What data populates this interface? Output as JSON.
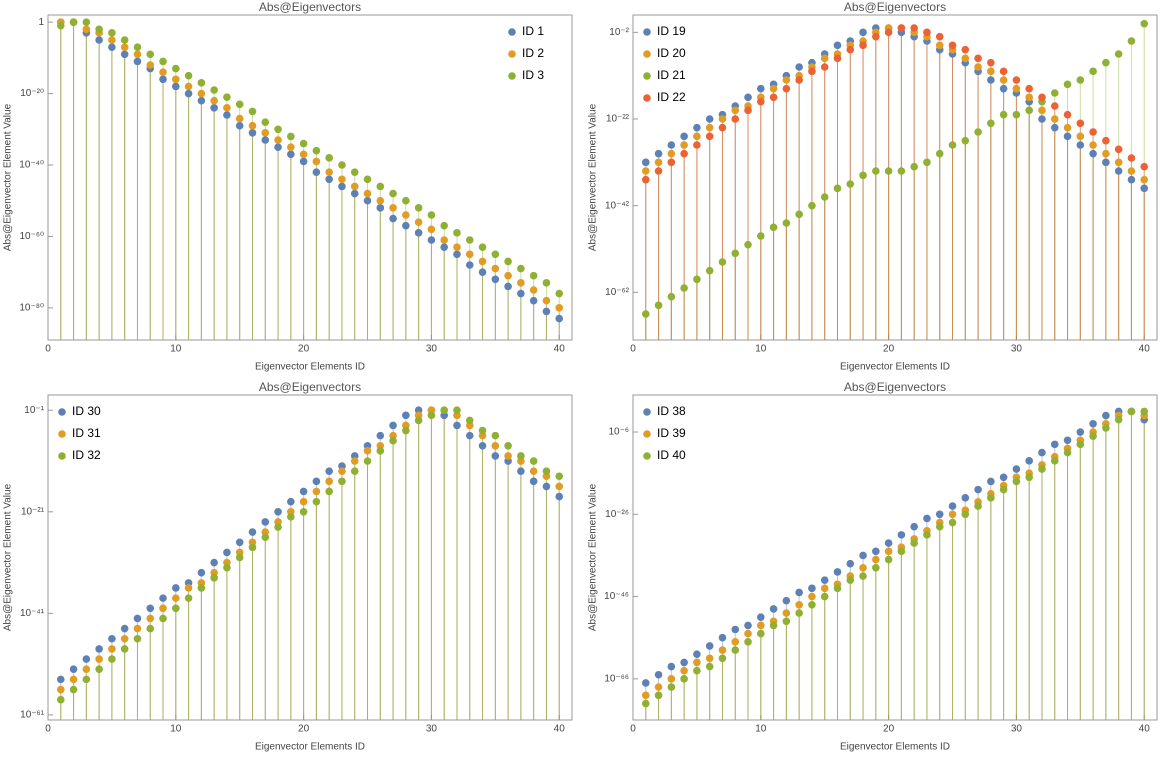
{
  "chart_data": [
    {
      "type": "scatter",
      "title": "Abs@Eigenvectors",
      "x_label": "Eigenvector Elements ID",
      "y_label": "Abs@Eigenvector Element Value",
      "y_scale": "log",
      "legend": "upper right",
      "x": [
        1,
        2,
        3,
        4,
        5,
        6,
        7,
        8,
        9,
        10,
        11,
        12,
        13,
        14,
        15,
        16,
        17,
        18,
        19,
        20,
        21,
        22,
        23,
        24,
        25,
        26,
        27,
        28,
        29,
        30,
        31,
        32,
        33,
        34,
        35,
        36,
        37,
        38,
        39,
        40
      ],
      "xlim": [
        0,
        41
      ],
      "xticks": [
        0,
        10,
        20,
        30,
        40
      ],
      "ylim": [
        1e-89,
        100.0
      ],
      "yticks": [
        1,
        {
          "value": 1e-20,
          "label": "10⁻²⁰"
        },
        {
          "value": 1e-40,
          "label": "10⁻⁴⁰"
        },
        {
          "value": 1e-60,
          "label": "10⁻⁶⁰"
        },
        {
          "value": 1e-80,
          "label": "10⁻⁸⁰"
        }
      ],
      "series": [
        {
          "name": "ID 1",
          "color": "#5e81b5",
          "values": [
            1,
            1,
            0.001,
            1e-05,
            1e-07,
            1e-09,
            1e-11,
            1e-13,
            1e-16,
            1e-18,
            1e-20,
            1e-22,
            1e-24,
            1e-26,
            1e-29,
            1e-31,
            1e-33,
            1e-35,
            1e-37,
            1e-39,
            1e-42,
            1e-44,
            1e-46,
            1e-48,
            1e-50,
            1e-52,
            1e-55,
            1e-57,
            1e-59,
            1e-61,
            1e-63,
            1e-65,
            1e-68,
            1e-70,
            1e-72,
            1e-74,
            1e-76,
            1e-78,
            1e-81,
            1e-83
          ]
        },
        {
          "name": "ID 2",
          "color": "#e19c24",
          "values": [
            1,
            1,
            0.01,
            0.001,
            1e-05,
            1e-07,
            1e-09,
            1e-12,
            1e-14,
            1e-16,
            1e-18,
            1e-20,
            1e-22,
            1e-24,
            1e-27,
            1e-29,
            1e-31,
            1e-33,
            1e-35,
            1e-37,
            1e-39,
            1e-42,
            1e-44,
            1e-46,
            1e-48,
            1e-50,
            1e-52,
            1e-54,
            1e-56,
            1e-58,
            1e-61,
            1e-63,
            1e-65,
            1e-67,
            1e-69,
            1e-71,
            1e-73,
            1e-75,
            1e-78,
            1e-80
          ]
        },
        {
          "name": "ID 3",
          "color": "#8fb032",
          "values": [
            0.1,
            1,
            1,
            0.01,
            0.001,
            1e-05,
            1e-07,
            1e-09,
            1e-11,
            1e-13,
            1e-15,
            1e-17,
            1e-19,
            1e-21,
            1e-23,
            1e-25,
            1e-28,
            1e-30,
            1e-32,
            1e-34,
            1e-36,
            1e-38,
            1e-40,
            1e-42,
            1e-44,
            1e-46,
            1e-48,
            1e-50,
            1e-52,
            1e-54,
            1e-57,
            1e-59,
            1e-61,
            1e-63,
            1e-65,
            1e-67,
            1e-69,
            1e-71,
            1e-73,
            1e-76
          ]
        }
      ]
    },
    {
      "type": "scatter",
      "title": "Abs@Eigenvectors",
      "x_label": "Eigenvector Elements ID",
      "y_label": "Abs@Eigenvector Element Value",
      "y_scale": "log",
      "legend": "upper left",
      "x": [
        1,
        2,
        3,
        4,
        5,
        6,
        7,
        8,
        9,
        10,
        11,
        12,
        13,
        14,
        15,
        16,
        17,
        18,
        19,
        20,
        21,
        22,
        23,
        24,
        25,
        26,
        27,
        28,
        29,
        30,
        31,
        32,
        33,
        34,
        35,
        36,
        37,
        38,
        39,
        40
      ],
      "xlim": [
        0,
        41
      ],
      "xticks": [
        0,
        10,
        20,
        30,
        40
      ],
      "ylim": [
        1e-73,
        100.0
      ],
      "yticks": [
        {
          "value": 0.01,
          "label": "10⁻²"
        },
        {
          "value": 1e-22,
          "label": "10⁻²²"
        },
        {
          "value": 1e-42,
          "label": "10⁻⁴²"
        },
        {
          "value": 1e-62,
          "label": "10⁻⁶²"
        }
      ],
      "series": [
        {
          "name": "ID 19",
          "color": "#5e81b5",
          "values": [
            1e-32,
            1e-30,
            1e-28,
            1e-26,
            1e-24,
            1e-22,
            1e-21,
            1e-19,
            1e-17,
            1e-15,
            1e-14,
            1e-12,
            1e-10,
            1e-09,
            1e-07,
            1e-05,
            0.0001,
            0.01,
            0.1,
            0.1,
            0.01,
            0.001,
            0.0001,
            1e-06,
            1e-07,
            1e-09,
            1e-11,
            1e-13,
            1e-15,
            1e-16,
            1e-18,
            1e-22,
            1e-24,
            1e-26,
            1e-28,
            1e-30,
            1e-32,
            1e-34,
            1e-36,
            1e-38
          ]
        },
        {
          "name": "ID 20",
          "color": "#e19c24",
          "values": [
            1e-34,
            1e-32,
            1e-30,
            1e-28,
            1e-26,
            1e-24,
            1e-22,
            1e-20,
            1e-19,
            1e-17,
            1e-15,
            1e-13,
            1e-12,
            1e-10,
            1e-08,
            1e-07,
            1e-05,
            0.0001,
            0.01,
            0.1,
            0.1,
            0.01,
            0.001,
            1e-05,
            1e-06,
            1e-08,
            1e-10,
            1e-11,
            1e-13,
            1e-15,
            1e-17,
            1e-20,
            1e-22,
            1e-24,
            1e-26,
            1e-28,
            1e-30,
            1e-32,
            1e-34,
            1e-36
          ]
        },
        {
          "name": "ID 21",
          "color": "#8fb032",
          "values": [
            1e-67,
            1e-65,
            1e-63,
            1e-61,
            1e-59,
            1e-57,
            1e-55,
            1e-53,
            1e-51,
            1e-49,
            1e-47,
            1e-46,
            1e-44,
            1e-42,
            1e-40,
            1e-38,
            1e-37,
            1e-35,
            1e-34,
            1e-34,
            1e-34,
            1e-33,
            1e-32,
            1e-30,
            1e-28,
            1e-27,
            1e-25,
            1e-23,
            1e-21,
            1e-21,
            1e-20,
            1e-18,
            1e-16,
            1e-14,
            1e-13,
            1e-11,
            1e-09,
            1e-07,
            0.0001,
            1
          ]
        },
        {
          "name": "ID 22",
          "color": "#eb6235",
          "values": [
            1e-36,
            1e-34,
            1e-32,
            1e-30,
            1e-28,
            1e-26,
            1e-24,
            1e-22,
            1e-20,
            1e-18,
            1e-17,
            1e-15,
            1e-13,
            1e-11,
            1e-10,
            1e-08,
            1e-06,
            1e-05,
            0.001,
            0.01,
            0.1,
            0.1,
            0.01,
            0.001,
            1e-05,
            1e-06,
            1e-08,
            1e-09,
            1e-11,
            1e-13,
            1e-15,
            1e-17,
            1e-19,
            1e-21,
            1e-23,
            1e-25,
            1e-27,
            1e-29,
            1e-31,
            1e-33
          ]
        }
      ]
    },
    {
      "type": "scatter",
      "title": "Abs@Eigenvectors",
      "x_label": "Eigenvector Elements ID",
      "y_label": "Abs@Eigenvector Element Value",
      "y_scale": "log",
      "legend": "upper left",
      "x": [
        1,
        2,
        3,
        4,
        5,
        6,
        7,
        8,
        9,
        10,
        11,
        12,
        13,
        14,
        15,
        16,
        17,
        18,
        19,
        20,
        21,
        22,
        23,
        24,
        25,
        26,
        27,
        28,
        29,
        30,
        31,
        32,
        33,
        34,
        35,
        36,
        37,
        38,
        39,
        40
      ],
      "xlim": [
        0,
        41
      ],
      "xticks": [
        0,
        10,
        20,
        30,
        40
      ],
      "ylim": [
        1e-62,
        100.0
      ],
      "yticks": [
        {
          "value": 0.1,
          "label": "10⁻¹"
        },
        {
          "value": 1e-21,
          "label": "10⁻²¹"
        },
        {
          "value": 1e-41,
          "label": "10⁻⁴¹"
        },
        {
          "value": 1e-61,
          "label": "10⁻⁶¹"
        }
      ],
      "series": [
        {
          "name": "ID 30",
          "color": "#5e81b5",
          "values": [
            1e-54,
            1e-52,
            1e-50,
            1e-48,
            1e-46,
            1e-44,
            1e-42,
            1e-40,
            1e-38,
            1e-36,
            1e-35,
            1e-33,
            1e-31,
            1e-29,
            1e-27,
            1e-25,
            1e-23,
            1e-21,
            1e-19,
            1e-17,
            1e-15,
            1e-13,
            1e-12,
            1e-10,
            1e-08,
            1e-06,
            0.0001,
            0.01,
            0.1,
            0.1,
            0.01,
            0.0001,
            1e-06,
            1e-08,
            1e-10,
            1e-11,
            1e-13,
            1e-15,
            1e-16,
            1e-18
          ]
        },
        {
          "name": "ID 31",
          "color": "#e19c24",
          "values": [
            1e-56,
            1e-54,
            1e-52,
            1e-50,
            1e-48,
            1e-46,
            1e-44,
            1e-42,
            1e-40,
            1e-38,
            1e-36,
            1e-35,
            1e-33,
            1e-31,
            1e-29,
            1e-27,
            1e-25,
            1e-23,
            1e-21,
            1e-19,
            1e-17,
            1e-15,
            1e-13,
            1e-11,
            1e-09,
            1e-08,
            1e-06,
            0.0001,
            0.01,
            0.1,
            0.1,
            0.01,
            0.0001,
            1e-06,
            1e-08,
            1e-10,
            1e-11,
            1e-13,
            1e-14,
            1e-16
          ]
        },
        {
          "name": "ID 32",
          "color": "#8fb032",
          "values": [
            1e-58,
            1e-56,
            1e-54,
            1e-52,
            1e-50,
            1e-48,
            1e-46,
            1e-44,
            1e-42,
            1e-40,
            1e-38,
            1e-36,
            1e-34,
            1e-32,
            1e-30,
            1e-28,
            1e-26,
            1e-24,
            1e-22,
            1e-21,
            1e-19,
            1e-17,
            1e-15,
            1e-13,
            1e-11,
            1e-09,
            1e-07,
            1e-05,
            0.001,
            0.01,
            0.1,
            0.1,
            0.001,
            1e-05,
            1e-06,
            1e-08,
            1e-10,
            1e-11,
            1e-13,
            1e-14
          ]
        }
      ]
    },
    {
      "type": "scatter",
      "title": "Abs@Eigenvectors",
      "x_label": "Eigenvector Elements ID",
      "y_label": "Abs@Eigenvector Element Value",
      "y_scale": "log",
      "legend": "upper left",
      "x": [
        1,
        2,
        3,
        4,
        5,
        6,
        7,
        8,
        9,
        10,
        11,
        12,
        13,
        14,
        15,
        16,
        17,
        18,
        19,
        20,
        21,
        22,
        23,
        24,
        25,
        26,
        27,
        28,
        29,
        30,
        31,
        32,
        33,
        34,
        35,
        36,
        37,
        38,
        39,
        40
      ],
      "xlim": [
        0,
        41
      ],
      "xticks": [
        0,
        10,
        20,
        30,
        40
      ],
      "ylim": [
        1e-76,
        1000.0
      ],
      "yticks": [
        {
          "value": 1e-06,
          "label": "10⁻⁶"
        },
        {
          "value": 1e-26,
          "label": "10⁻²⁶"
        },
        {
          "value": 1e-46,
          "label": "10⁻⁴⁶"
        },
        {
          "value": 1e-66,
          "label": "10⁻⁶⁶"
        }
      ],
      "series": [
        {
          "name": "ID 38",
          "color": "#5e81b5",
          "values": [
            1e-67,
            1e-65,
            1e-63,
            1e-62,
            1e-60,
            1e-58,
            1e-56,
            1e-54,
            1e-53,
            1e-51,
            1e-49,
            1e-47,
            1e-45,
            1e-44,
            1e-42,
            1e-40,
            1e-38,
            1e-36,
            1e-35,
            1e-33,
            1e-31,
            1e-29,
            1e-27,
            1e-26,
            1e-24,
            1e-22,
            1e-20,
            1e-18,
            1e-17,
            1e-15,
            1e-13,
            1e-11,
            1e-09,
            1e-08,
            1e-06,
            0.0001,
            0.01,
            0.1,
            0.1,
            0.001
          ]
        },
        {
          "name": "ID 39",
          "color": "#e19c24",
          "values": [
            1e-70,
            1e-68,
            1e-66,
            1e-64,
            1e-62,
            1e-61,
            1e-59,
            1e-57,
            1e-55,
            1e-53,
            1e-52,
            1e-50,
            1e-48,
            1e-46,
            1e-44,
            1e-43,
            1e-41,
            1e-39,
            1e-37,
            1e-35,
            1e-34,
            1e-32,
            1e-30,
            1e-28,
            1e-26,
            1e-25,
            1e-23,
            1e-21,
            1e-19,
            1e-17,
            1e-16,
            1e-14,
            1e-12,
            1e-10,
            1e-08,
            1e-06,
            0.0001,
            0.01,
            0.1,
            0.01
          ]
        },
        {
          "name": "ID 40",
          "color": "#8fb032",
          "values": [
            1e-72,
            1e-70,
            1e-68,
            1e-66,
            1e-64,
            1e-63,
            1e-61,
            1e-59,
            1e-57,
            1e-55,
            1e-53,
            1e-52,
            1e-50,
            1e-48,
            1e-46,
            1e-44,
            1e-42,
            1e-41,
            1e-39,
            1e-37,
            1e-35,
            1e-33,
            1e-31,
            1e-29,
            1e-28,
            1e-26,
            1e-24,
            1e-22,
            1e-20,
            1e-18,
            1e-17,
            1e-15,
            1e-13,
            1e-11,
            1e-09,
            1e-07,
            1e-05,
            0.001,
            0.1,
            0.1
          ]
        }
      ]
    }
  ]
}
